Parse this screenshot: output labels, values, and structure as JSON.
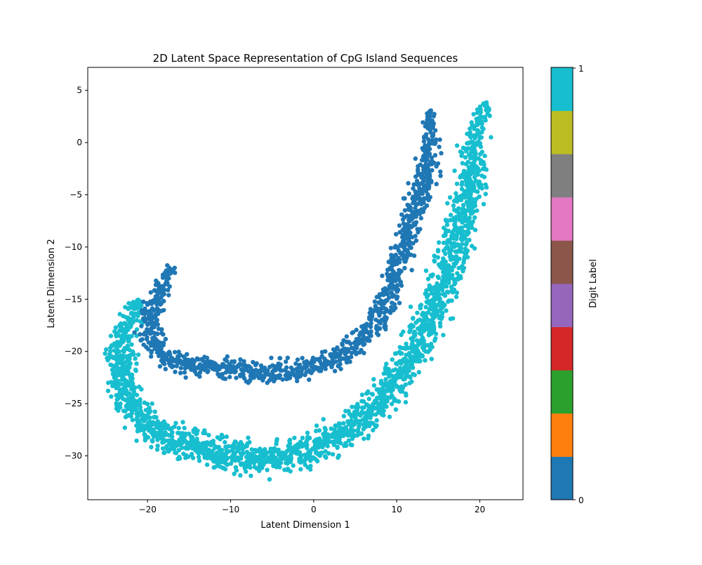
{
  "chart_data": {
    "type": "scatter",
    "title": "2D Latent Space Representation of CpG Island Sequences",
    "xlabel": "Latent Dimension 1",
    "ylabel": "Latent Dimension 2",
    "xlim": [
      -27.2,
      25.2
    ],
    "ylim": [
      -34.2,
      7.2
    ],
    "xticks": [
      -20,
      -10,
      0,
      10,
      20
    ],
    "xtick_labels": [
      "−20",
      "−10",
      "0",
      "10",
      "20"
    ],
    "yticks": [
      5,
      0,
      -5,
      -10,
      -15,
      -20,
      -25,
      -30
    ],
    "ytick_labels": [
      "5",
      "0",
      "−5",
      "−10",
      "−15",
      "−20",
      "−25",
      "−30"
    ],
    "grid": false,
    "series": [
      {
        "name": "0",
        "color": "#1f77b4",
        "description": "inner crescent band",
        "points": [
          [
            -17,
            -12
          ],
          [
            -18.5,
            -14
          ],
          [
            -19.5,
            -17
          ],
          [
            -19,
            -20
          ],
          [
            -16,
            -21
          ],
          [
            -12,
            -21.5
          ],
          [
            -8,
            -21.8
          ],
          [
            -4,
            -22
          ],
          [
            0,
            -21.5
          ],
          [
            4,
            -20
          ],
          [
            8,
            -16.5
          ],
          [
            10,
            -12
          ],
          [
            12,
            -7
          ],
          [
            13.5,
            -3
          ],
          [
            14,
            0
          ],
          [
            14,
            3
          ]
        ]
      },
      {
        "name": "1",
        "color": "#17becf",
        "description": "outer crescent band",
        "points": [
          [
            -21,
            -15
          ],
          [
            -23,
            -19
          ],
          [
            -23,
            -23
          ],
          [
            -20,
            -27
          ],
          [
            -15,
            -29
          ],
          [
            -9,
            -30
          ],
          [
            -3,
            -30
          ],
          [
            3,
            -28
          ],
          [
            8,
            -25
          ],
          [
            12,
            -20
          ],
          [
            15,
            -15
          ],
          [
            17,
            -10
          ],
          [
            18.5,
            -5
          ],
          [
            19.5,
            0
          ],
          [
            20.5,
            4
          ]
        ]
      }
    ],
    "colorbar": {
      "label": "Digit Label",
      "min_label": "0",
      "max_label": "1",
      "colors": [
        "#1f77b4",
        "#ff7f0e",
        "#2ca02c",
        "#d62728",
        "#9467bd",
        "#8c564b",
        "#e377c2",
        "#7f7f7f",
        "#bcbd22",
        "#17becf"
      ]
    }
  }
}
